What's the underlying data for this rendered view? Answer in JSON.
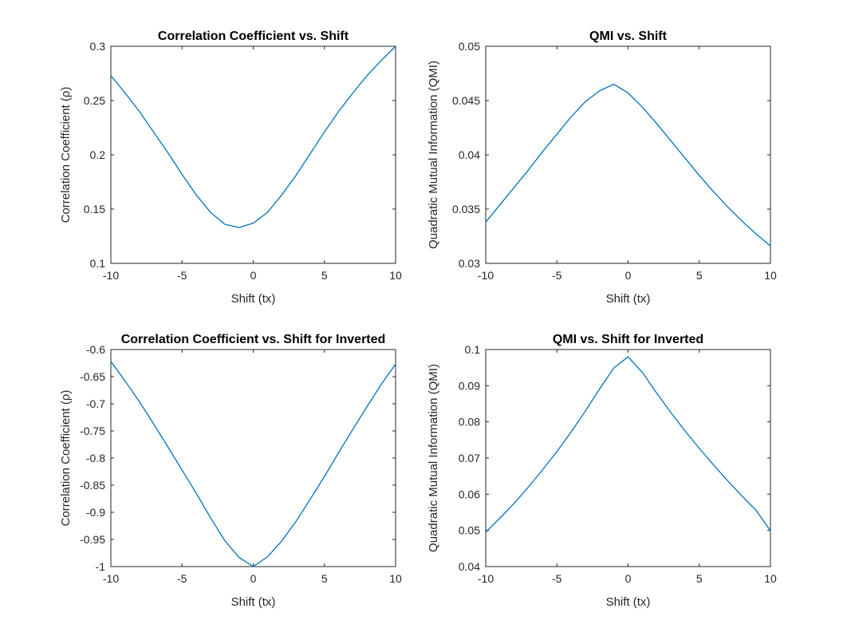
{
  "chart_data": [
    {
      "type": "line",
      "title": "Correlation Coefficient vs. Shift",
      "xlabel": "Shift (tx)",
      "ylabel": "Correlation Coefficient (ρ)",
      "xlim": [
        -10,
        10
      ],
      "ylim": [
        0.1,
        0.3
      ],
      "xticks": [
        -10,
        -5,
        0,
        5,
        10
      ],
      "xtick_labels": [
        "-10",
        "-5",
        "0",
        "5",
        "10"
      ],
      "yticks": [
        0.1,
        0.15,
        0.2,
        0.25,
        0.3
      ],
      "ytick_labels": [
        "0.1",
        "0.15",
        "0.2",
        "0.25",
        "0.3"
      ],
      "grid": false,
      "series": [
        {
          "color": "#0072BD",
          "x": [
            -10,
            -9,
            -8,
            -7,
            -6,
            -5,
            -4,
            -3,
            -2,
            -1,
            0,
            1,
            2,
            3,
            4,
            5,
            6,
            7,
            8,
            9,
            10
          ],
          "y": [
            0.273,
            0.257,
            0.24,
            0.221,
            0.202,
            0.182,
            0.163,
            0.147,
            0.136,
            0.133,
            0.137,
            0.147,
            0.163,
            0.181,
            0.201,
            0.221,
            0.24,
            0.257,
            0.273,
            0.287,
            0.3
          ]
        }
      ]
    },
    {
      "type": "line",
      "title": "QMI vs. Shift",
      "xlabel": "Shift (tx)",
      "ylabel": "Quadratic Mutual Information (QMI)",
      "xlim": [
        -10,
        10
      ],
      "ylim": [
        0.03,
        0.05
      ],
      "xticks": [
        -10,
        -5,
        0,
        5,
        10
      ],
      "xtick_labels": [
        "-10",
        "-5",
        "0",
        "5",
        "10"
      ],
      "yticks": [
        0.03,
        0.035,
        0.04,
        0.045,
        0.05
      ],
      "ytick_labels": [
        "0.03",
        "0.035",
        "0.04",
        "0.045",
        "0.05"
      ],
      "grid": false,
      "series": [
        {
          "color": "#0072BD",
          "x": [
            -10,
            -9,
            -8,
            -7,
            -6,
            -5,
            -4,
            -3,
            -2,
            -1,
            0,
            1,
            2,
            3,
            4,
            5,
            6,
            7,
            8,
            9,
            10
          ],
          "y": [
            0.0338,
            0.0354,
            0.037,
            0.0386,
            0.0403,
            0.0419,
            0.0435,
            0.0449,
            0.0459,
            0.0465,
            0.0457,
            0.0444,
            0.0429,
            0.0413,
            0.0397,
            0.0381,
            0.0366,
            0.0352,
            0.0339,
            0.0327,
            0.0316
          ]
        }
      ]
    },
    {
      "type": "line",
      "title": "Correlation Coefficient vs. Shift for Inverted",
      "xlabel": "Shift (tx)",
      "ylabel": "Correlation Coefficient (ρ)",
      "xlim": [
        -10,
        10
      ],
      "ylim": [
        -1,
        -0.6
      ],
      "xticks": [
        -10,
        -5,
        0,
        5,
        10
      ],
      "xtick_labels": [
        "-10",
        "-5",
        "0",
        "5",
        "10"
      ],
      "yticks": [
        -1,
        -0.95,
        -0.9,
        -0.85,
        -0.8,
        -0.75,
        -0.7,
        -0.65,
        -0.6
      ],
      "ytick_labels": [
        "-1",
        "-0.95",
        "-0.9",
        "-0.85",
        "-0.8",
        "-0.75",
        "-0.7",
        "-0.65",
        "-0.6"
      ],
      "grid": false,
      "series": [
        {
          "color": "#0072BD",
          "x": [
            -10,
            -9,
            -8,
            -7,
            -6,
            -5,
            -4,
            -3,
            -2,
            -1,
            0,
            1,
            2,
            3,
            4,
            5,
            6,
            7,
            8,
            9,
            10
          ],
          "y": [
            -0.622,
            -0.658,
            -0.696,
            -0.737,
            -0.779,
            -0.822,
            -0.865,
            -0.91,
            -0.952,
            -0.983,
            -1.0,
            -0.982,
            -0.953,
            -0.917,
            -0.876,
            -0.834,
            -0.79,
            -0.747,
            -0.705,
            -0.664,
            -0.627
          ]
        }
      ]
    },
    {
      "type": "line",
      "title": "QMI vs. Shift for Inverted",
      "xlabel": "Shift (tx)",
      "ylabel": "Quadratic Mutual Information (QMI)",
      "xlim": [
        -10,
        10
      ],
      "ylim": [
        0.04,
        0.1
      ],
      "xticks": [
        -10,
        -5,
        0,
        5,
        10
      ],
      "xtick_labels": [
        "-10",
        "-5",
        "0",
        "5",
        "10"
      ],
      "yticks": [
        0.04,
        0.05,
        0.06,
        0.07,
        0.08,
        0.09,
        0.1
      ],
      "ytick_labels": [
        "0.04",
        "0.05",
        "0.06",
        "0.07",
        "0.08",
        "0.09",
        "0.1"
      ],
      "grid": false,
      "series": [
        {
          "color": "#0072BD",
          "x": [
            -10,
            -9,
            -8,
            -7,
            -6,
            -5,
            -4,
            -3,
            -2,
            -1,
            0,
            1,
            2,
            3,
            4,
            5,
            6,
            7,
            8,
            9,
            10
          ],
          "y": [
            0.0495,
            0.0534,
            0.0575,
            0.062,
            0.0668,
            0.0718,
            0.0772,
            0.083,
            0.0891,
            0.0949,
            0.098,
            0.0937,
            0.088,
            0.0826,
            0.0775,
            0.0727,
            0.0681,
            0.0637,
            0.0595,
            0.0555,
            0.0499
          ]
        }
      ]
    }
  ]
}
